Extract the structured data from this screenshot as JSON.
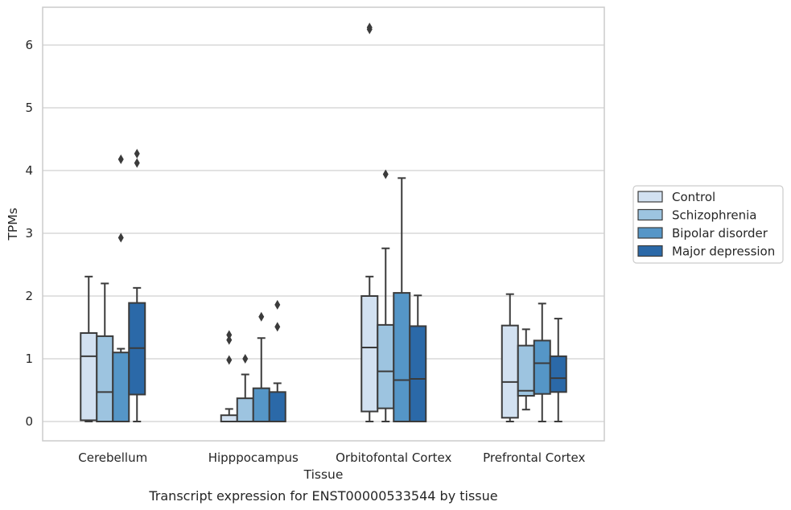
{
  "chart_data": {
    "type": "box",
    "title": "",
    "xlabel": "Tissue",
    "ylabel": "TPMs",
    "caption": "Transcript expression for ENST00000533544 by tissue",
    "ylim": [
      -0.3,
      6.6
    ],
    "yticks": [
      0,
      1,
      2,
      3,
      4,
      5,
      6
    ],
    "grid": "horizontal",
    "legend_position": "right",
    "categories": [
      "Cerebellum",
      "Hipppocampus",
      "Orbitofontal Cortex",
      "Prefrontal Cortex"
    ],
    "series": [
      {
        "name": "Control",
        "color": "#d2e1f1",
        "boxes": [
          {
            "whislo": 0.0,
            "q1": 0.02,
            "med": 1.04,
            "q3": 1.41,
            "whishi": 2.31,
            "fliers": []
          },
          {
            "whislo": 0.0,
            "q1": 0.0,
            "med": 0.0,
            "q3": 0.1,
            "whishi": 0.2,
            "fliers": [
              0.98,
              1.3,
              1.38
            ]
          },
          {
            "whislo": 0.0,
            "q1": 0.16,
            "med": 1.18,
            "q3": 2.0,
            "whishi": 2.31,
            "fliers": [
              6.25,
              6.28
            ]
          },
          {
            "whislo": 0.0,
            "q1": 0.06,
            "med": 0.63,
            "q3": 1.53,
            "whishi": 2.03,
            "fliers": []
          }
        ]
      },
      {
        "name": "Schizophrenia",
        "color": "#9dc4e0",
        "boxes": [
          {
            "whislo": 0.0,
            "q1": 0.0,
            "med": 0.47,
            "q3": 1.36,
            "whishi": 2.2,
            "fliers": []
          },
          {
            "whislo": 0.0,
            "q1": 0.0,
            "med": 0.0,
            "q3": 0.37,
            "whishi": 0.75,
            "fliers": [
              1.0
            ]
          },
          {
            "whislo": 0.0,
            "q1": 0.21,
            "med": 0.8,
            "q3": 1.54,
            "whishi": 2.76,
            "fliers": [
              3.94
            ]
          },
          {
            "whislo": 0.19,
            "q1": 0.41,
            "med": 0.49,
            "q3": 1.21,
            "whishi": 1.47,
            "fliers": []
          }
        ]
      },
      {
        "name": "Bipolar disorder",
        "color": "#5596c7",
        "boxes": [
          {
            "whislo": 0.0,
            "q1": 0.0,
            "med": 0.0,
            "q3": 1.1,
            "whishi": 1.16,
            "fliers": [
              2.93,
              4.18
            ]
          },
          {
            "whislo": 0.0,
            "q1": 0.0,
            "med": 0.0,
            "q3": 0.53,
            "whishi": 1.33,
            "fliers": [
              1.67
            ]
          },
          {
            "whislo": 0.0,
            "q1": 0.0,
            "med": 0.66,
            "q3": 2.05,
            "whishi": 3.88,
            "fliers": []
          },
          {
            "whislo": 0.0,
            "q1": 0.44,
            "med": 0.93,
            "q3": 1.29,
            "whishi": 1.88,
            "fliers": []
          }
        ]
      },
      {
        "name": "Major depression",
        "color": "#2b69a8",
        "boxes": [
          {
            "whislo": 0.0,
            "q1": 0.43,
            "med": 1.17,
            "q3": 1.89,
            "whishi": 2.13,
            "fliers": [
              4.12,
              4.27
            ]
          },
          {
            "whislo": 0.0,
            "q1": 0.0,
            "med": 0.0,
            "q3": 0.47,
            "whishi": 0.61,
            "fliers": [
              1.51,
              1.86
            ]
          },
          {
            "whislo": 0.0,
            "q1": 0.0,
            "med": 0.68,
            "q3": 1.52,
            "whishi": 2.01,
            "fliers": []
          },
          {
            "whislo": 0.0,
            "q1": 0.47,
            "med": 0.69,
            "q3": 1.04,
            "whishi": 1.64,
            "fliers": []
          }
        ]
      }
    ]
  }
}
